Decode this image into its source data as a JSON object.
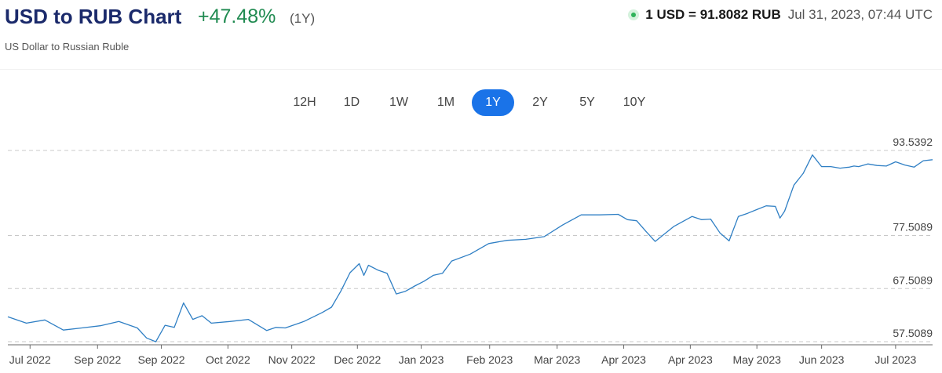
{
  "header": {
    "title": "USD to RUB Chart",
    "change": "+47.48%",
    "period": "(1Y)",
    "subtitle": "US Dollar to Russian Ruble",
    "rate": "1 USD = 91.8082 RUB",
    "timestamp": "Jul 31, 2023, 07:44 UTC"
  },
  "ranges": [
    {
      "label": "12H",
      "active": false
    },
    {
      "label": "1D",
      "active": false
    },
    {
      "label": "1W",
      "active": false
    },
    {
      "label": "1M",
      "active": false
    },
    {
      "label": "1Y",
      "active": true
    },
    {
      "label": "2Y",
      "active": false
    },
    {
      "label": "5Y",
      "active": false
    },
    {
      "label": "10Y",
      "active": false
    }
  ],
  "colors": {
    "line": "#2f7fc4",
    "active_button": "#1a73e8",
    "positive": "#1f8a50",
    "grid": "#c8c8c8"
  },
  "chart_data": {
    "type": "line",
    "title": "",
    "xlabel": "",
    "ylabel": "",
    "ylim": [
      57.5089,
      93.5392
    ],
    "y_ticks": [
      "93.5392",
      "77.5089",
      "67.5089",
      "57.5089"
    ],
    "y_tick_values": [
      93.5392,
      77.5089,
      67.5089,
      57.5089
    ],
    "grid": "horizontal dashed",
    "x_tick_labels": [
      "Jul 2022",
      "Sep 2022",
      "Sep 2022",
      "Oct 2022",
      "Nov 2022",
      "Dec 2022",
      "Jan 2023",
      "Feb 2023",
      "Mar 2023",
      "Apr 2023",
      "Apr 2023",
      "May 2023",
      "Jun 2023",
      "Jul 2023"
    ],
    "x_tick_positions": [
      0.024,
      0.097,
      0.166,
      0.238,
      0.307,
      0.378,
      0.447,
      0.521,
      0.594,
      0.666,
      0.738,
      0.81,
      0.88,
      0.96
    ],
    "series": [
      {
        "x": [
          0.0,
          0.02,
          0.04,
          0.06,
          0.08,
          0.1,
          0.12,
          0.14,
          0.15,
          0.16,
          0.17,
          0.18,
          0.19,
          0.2,
          0.21,
          0.22,
          0.24,
          0.26,
          0.28,
          0.29,
          0.3,
          0.32,
          0.34,
          0.35,
          0.36,
          0.37,
          0.38,
          0.385,
          0.39,
          0.4,
          0.41,
          0.42,
          0.43,
          0.44,
          0.45,
          0.46,
          0.47,
          0.48,
          0.5,
          0.52,
          0.54,
          0.56,
          0.58,
          0.6,
          0.62,
          0.64,
          0.66,
          0.67,
          0.68,
          0.69,
          0.7,
          0.72,
          0.74,
          0.75,
          0.76,
          0.77,
          0.78,
          0.79,
          0.8,
          0.81,
          0.82,
          0.83,
          0.835,
          0.84,
          0.85,
          0.86,
          0.87,
          0.88,
          0.89,
          0.9,
          0.905,
          0.91,
          0.915,
          0.92,
          0.93,
          0.94,
          0.95,
          0.96,
          0.97,
          0.98,
          0.99,
          1.0
        ],
        "values": [
          62.2,
          61.0,
          61.6,
          59.7,
          60.1,
          60.5,
          61.3,
          60.1,
          58.2,
          57.5,
          60.6,
          60.2,
          64.8,
          61.7,
          62.4,
          61.0,
          61.3,
          61.7,
          59.6,
          60.2,
          60.1,
          61.3,
          63.0,
          64.0,
          67.0,
          70.5,
          72.2,
          70.0,
          71.9,
          71.0,
          70.4,
          66.5,
          67.0,
          68.0,
          68.9,
          70.0,
          70.4,
          72.7,
          74.0,
          76.0,
          76.6,
          76.8,
          77.3,
          79.5,
          81.4,
          81.4,
          81.5,
          80.5,
          80.3,
          78.3,
          76.4,
          79.2,
          81.1,
          80.5,
          80.6,
          78.0,
          76.5,
          81.1,
          81.7,
          82.4,
          83.1,
          83.0,
          80.8,
          82.1,
          87.0,
          89.2,
          92.7,
          90.5,
          90.5,
          90.2,
          90.3,
          90.4,
          90.6,
          90.5,
          91.0,
          90.7,
          90.6,
          91.4,
          90.8,
          90.4,
          91.6,
          91.8
        ]
      }
    ]
  }
}
